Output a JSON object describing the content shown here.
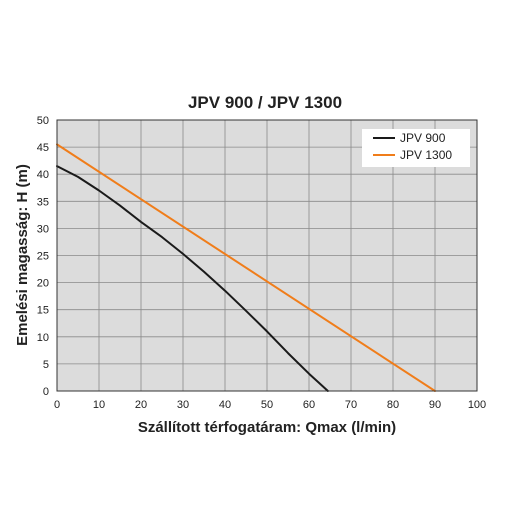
{
  "chart_data": {
    "type": "line",
    "title": "JPV 900 / JPV 1300",
    "xlabel": "Szállított térfogatáram: Qmax (l/min)",
    "ylabel": "Emelési magasság: H (m)",
    "xlim": [
      0,
      100
    ],
    "ylim": [
      0,
      50
    ],
    "xticks": [
      0,
      10,
      20,
      30,
      40,
      50,
      60,
      70,
      80,
      90,
      100
    ],
    "yticks": [
      0,
      5,
      10,
      15,
      20,
      25,
      30,
      35,
      40,
      45,
      50
    ],
    "grid": true,
    "legend_position": "top-right",
    "series": [
      {
        "name": "JPV 900",
        "color": "#1a1a1a",
        "x": [
          0,
          5,
          10,
          15,
          20,
          25,
          30,
          35,
          40,
          45,
          50,
          55,
          60,
          64.5
        ],
        "y": [
          41.5,
          39.5,
          37,
          34.2,
          31.2,
          28.4,
          25.3,
          22,
          18.5,
          14.8,
          11,
          7,
          3.2,
          0
        ]
      },
      {
        "name": "JPV 1300",
        "color": "#f07d1a",
        "x": [
          0,
          90
        ],
        "y": [
          45.5,
          0
        ]
      }
    ]
  }
}
